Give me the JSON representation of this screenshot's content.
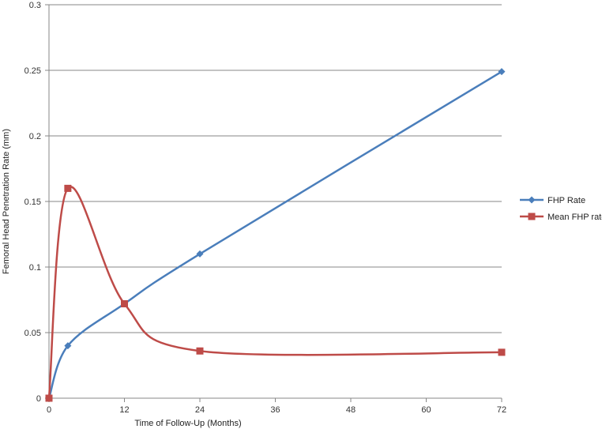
{
  "chart_data": {
    "type": "line",
    "title": "",
    "xlabel": "Time of Follow-Up (Months)",
    "ylabel": "Femoral Head Penetration Rate (mm)",
    "x_ticks": [
      "0",
      "12",
      "24",
      "36",
      "48",
      "60",
      "72"
    ],
    "y_ticks": [
      "0",
      "0.05",
      "0.1",
      "0.15",
      "0.2",
      "0.25",
      "0.3"
    ],
    "xlim": [
      0,
      72
    ],
    "ylim": [
      0,
      0.3
    ],
    "grid": "horizontal",
    "legend_position": "right",
    "x": [
      0,
      3,
      12,
      24,
      72
    ],
    "series": [
      {
        "name": "FHP Rate",
        "color": "#4a7ebb",
        "marker": "diamond",
        "values": [
          0,
          0.04,
          0.072,
          0.11,
          0.249
        ]
      },
      {
        "name": "Mean FHP rate",
        "color": "#be4b48",
        "marker": "square",
        "values": [
          0,
          0.16,
          0.072,
          0.036,
          0.035
        ]
      }
    ]
  }
}
